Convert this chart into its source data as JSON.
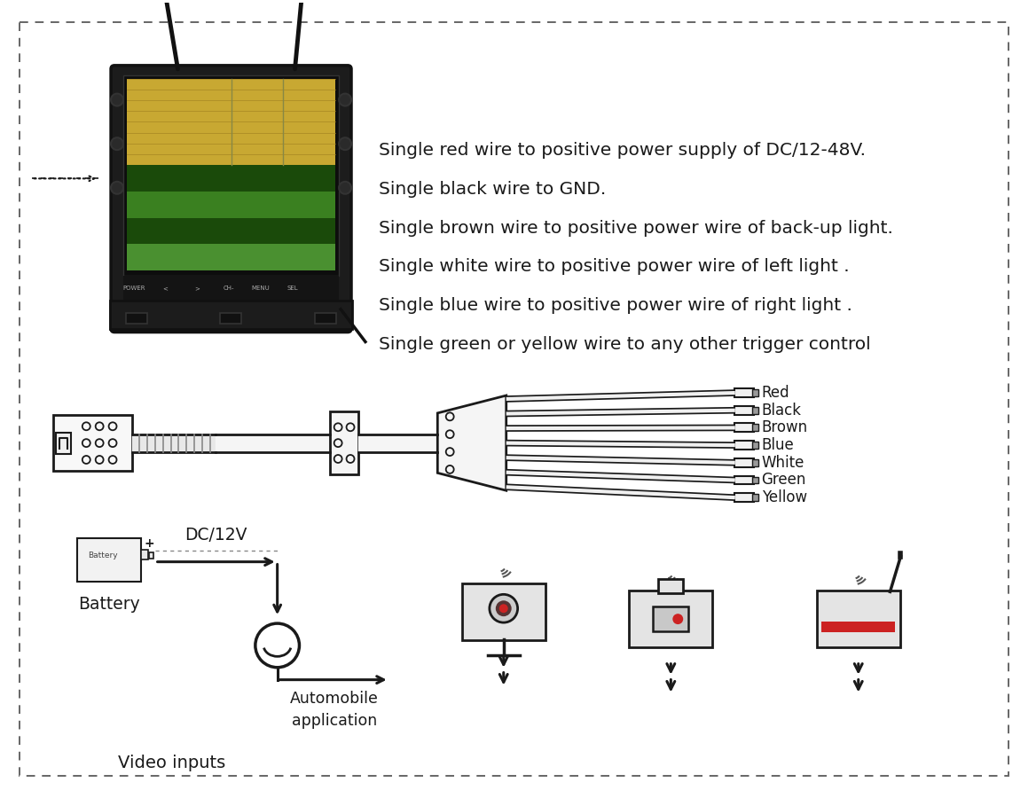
{
  "bg_color": "#ffffff",
  "text_color": "#1a1a1a",
  "wire_labels": [
    "Red",
    "Black",
    "Brown",
    "Blue",
    "White",
    "Green",
    "Yellow"
  ],
  "description_lines": [
    "Single red wire to positive power supply of DC/12-48V.",
    "Single black wire to GND.",
    "Single brown wire to positive power wire of back-up light.",
    "Single white wire to positive power wire of left light .",
    "Single blue wire to positive power wire of right light .",
    "Single green or yellow wire to any other trigger control"
  ],
  "desc_fontsize": 14.5,
  "label_fontsize": 12,
  "battery_label": "Battery",
  "dc_label": "DC/12V",
  "auto_label": "Automobile\napplication",
  "video_label": "Video inputs"
}
